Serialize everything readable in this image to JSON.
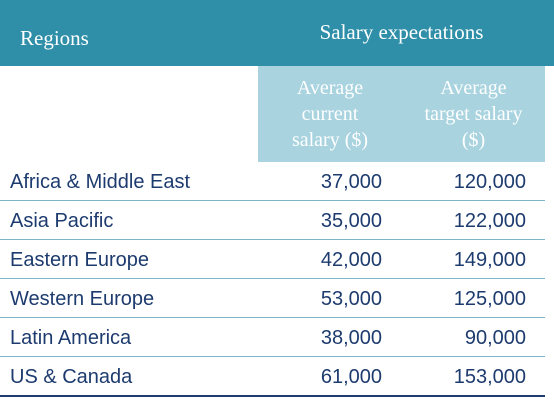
{
  "header": {
    "regions": "Regions",
    "group": "Salary expectations",
    "columns": [
      "Average current salary ($)",
      "Average target salary ($)"
    ]
  },
  "table": {
    "rows": [
      [
        "Africa & Middle East",
        "37,000",
        "120,000"
      ],
      [
        "Asia Pacific",
        "35,000",
        "122,000"
      ],
      [
        "Eastern Europe",
        "42,000",
        "149,000"
      ],
      [
        "Western Europe",
        "53,000",
        "125,000"
      ],
      [
        "Latin America",
        "38,000",
        "90,000"
      ],
      [
        "US & Canada",
        "61,000",
        "153,000"
      ]
    ]
  }
}
